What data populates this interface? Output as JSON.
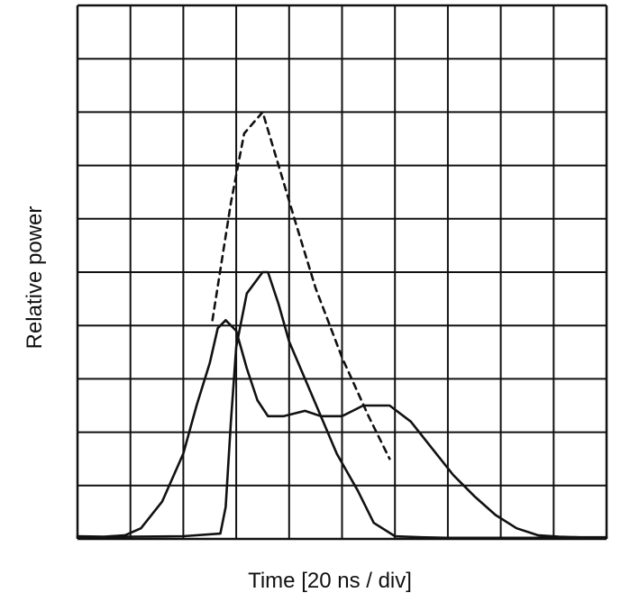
{
  "chart_data": {
    "type": "line",
    "title": "",
    "xlabel": "Time [20 ns / div]",
    "ylabel": "Relative power",
    "grid": true,
    "x_divisions": 10,
    "y_divisions": 10,
    "xlim": [
      0,
      10
    ],
    "ylim": [
      0,
      10
    ],
    "series": [
      {
        "style": "dashed",
        "x": [
          2.55,
          2.9,
          3.15,
          3.5,
          3.8,
          4.1,
          4.5,
          5.0,
          5.5,
          5.9
        ],
        "y": [
          4.1,
          6.3,
          7.6,
          8.0,
          7.0,
          6.0,
          4.7,
          3.4,
          2.3,
          1.5
        ]
      },
      {
        "style": "solid",
        "x": [
          0,
          0.5,
          0.9,
          1.2,
          1.6,
          2.0,
          2.25,
          2.5,
          2.65,
          2.8,
          3.0,
          3.2,
          3.4,
          3.6,
          3.9,
          4.3,
          4.6,
          5.0,
          5.4,
          5.9,
          6.3,
          6.7,
          7.1,
          7.5,
          7.9,
          8.3,
          8.7,
          9.1,
          9.5,
          10.0
        ],
        "y": [
          0.05,
          0.04,
          0.07,
          0.2,
          0.7,
          1.6,
          2.5,
          3.3,
          3.95,
          4.1,
          3.9,
          3.2,
          2.6,
          2.3,
          2.3,
          2.4,
          2.3,
          2.3,
          2.5,
          2.5,
          2.2,
          1.7,
          1.2,
          0.8,
          0.45,
          0.2,
          0.07,
          0.04,
          0.03,
          0.03
        ]
      },
      {
        "style": "solid",
        "x": [
          0,
          1.0,
          2.0,
          2.7,
          2.8,
          2.9,
          3.0,
          3.2,
          3.5,
          3.6,
          3.8,
          4.0,
          4.3,
          4.6,
          4.9,
          5.3,
          5.6,
          6.0,
          6.5,
          7.0,
          8.0,
          9.0,
          10.0
        ],
        "y": [
          0.03,
          0.04,
          0.05,
          0.1,
          0.6,
          2.2,
          3.6,
          4.6,
          5.0,
          5.0,
          4.4,
          3.7,
          3.0,
          2.3,
          1.6,
          0.9,
          0.3,
          0.05,
          0.03,
          0.02,
          0.02,
          0.02,
          0.02
        ]
      }
    ]
  }
}
